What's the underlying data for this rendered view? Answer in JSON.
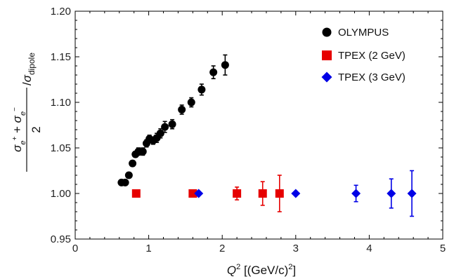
{
  "chart_data": {
    "type": "scatter",
    "title": "",
    "xlabel": {
      "prefix": "Q",
      "sup": "2",
      "suffix": " [(GeV/c)",
      "suffix_sup": "2",
      "end": "]"
    },
    "ylabel": {
      "num_a": "σ",
      "num_a_sub": "e",
      "num_a_sup": "+",
      "plus": " + ",
      "num_b": "σ",
      "num_b_sub": "e",
      "num_b_sup": "−",
      "den": "2",
      "slash": "/",
      "dip": "σ",
      "dip_sub": "dipole"
    },
    "xlim": [
      0,
      5
    ],
    "ylim": [
      0.95,
      1.2
    ],
    "x_ticks": [
      0,
      1,
      2,
      3,
      4,
      5
    ],
    "x_tick_labels": [
      "0",
      "1",
      "2",
      "3",
      "4",
      "5"
    ],
    "y_ticks": [
      0.95,
      1.0,
      1.05,
      1.1,
      1.15,
      1.2
    ],
    "y_tick_labels": [
      "0.95",
      "1.00",
      "1.05",
      "1.10",
      "1.15",
      "1.20"
    ],
    "grid": false,
    "legend_position": "top-right",
    "series": [
      {
        "name": "OLYMPUS",
        "marker": "circle",
        "color": "#000000",
        "points": [
          {
            "x": 0.63,
            "y": 1.012,
            "err": 0.002
          },
          {
            "x": 0.68,
            "y": 1.012,
            "err": 0.002
          },
          {
            "x": 0.73,
            "y": 1.02,
            "err": 0.003
          },
          {
            "x": 0.78,
            "y": 1.033,
            "err": 0.003
          },
          {
            "x": 0.82,
            "y": 1.043,
            "err": 0.003
          },
          {
            "x": 0.86,
            "y": 1.046,
            "err": 0.004
          },
          {
            "x": 0.92,
            "y": 1.046,
            "err": 0.004
          },
          {
            "x": 0.97,
            "y": 1.055,
            "err": 0.004
          },
          {
            "x": 1.01,
            "y": 1.06,
            "err": 0.004
          },
          {
            "x": 1.06,
            "y": 1.058,
            "err": 0.004
          },
          {
            "x": 1.11,
            "y": 1.061,
            "err": 0.005
          },
          {
            "x": 1.16,
            "y": 1.066,
            "err": 0.005
          },
          {
            "x": 1.22,
            "y": 1.073,
            "err": 0.006
          },
          {
            "x": 1.32,
            "y": 1.076,
            "err": 0.005
          },
          {
            "x": 1.45,
            "y": 1.092,
            "err": 0.005
          },
          {
            "x": 1.58,
            "y": 1.1,
            "err": 0.005
          },
          {
            "x": 1.72,
            "y": 1.114,
            "err": 0.006
          },
          {
            "x": 1.88,
            "y": 1.133,
            "err": 0.007
          },
          {
            "x": 2.04,
            "y": 1.141,
            "err": 0.011
          }
        ]
      },
      {
        "name": "TPEX (2 GeV)",
        "marker": "square",
        "color": "#e60000",
        "points": [
          {
            "x": 0.83,
            "y": 1.0,
            "err": 0.0
          },
          {
            "x": 1.6,
            "y": 1.0,
            "err": 0.002
          },
          {
            "x": 2.2,
            "y": 1.0,
            "err": 0.007
          },
          {
            "x": 2.55,
            "y": 1.0,
            "err": 0.013
          },
          {
            "x": 2.78,
            "y": 1.0,
            "err": 0.02
          }
        ]
      },
      {
        "name": "TPEX (3 GeV)",
        "marker": "diamond",
        "color": "#0000e6",
        "points": [
          {
            "x": 1.68,
            "y": 1.0,
            "err": 0.0
          },
          {
            "x": 3.0,
            "y": 1.0,
            "err": 0.0
          },
          {
            "x": 3.82,
            "y": 1.0,
            "err": 0.009
          },
          {
            "x": 4.3,
            "y": 1.0,
            "err": 0.016
          },
          {
            "x": 4.58,
            "y": 1.0,
            "err": 0.025
          }
        ]
      }
    ]
  }
}
